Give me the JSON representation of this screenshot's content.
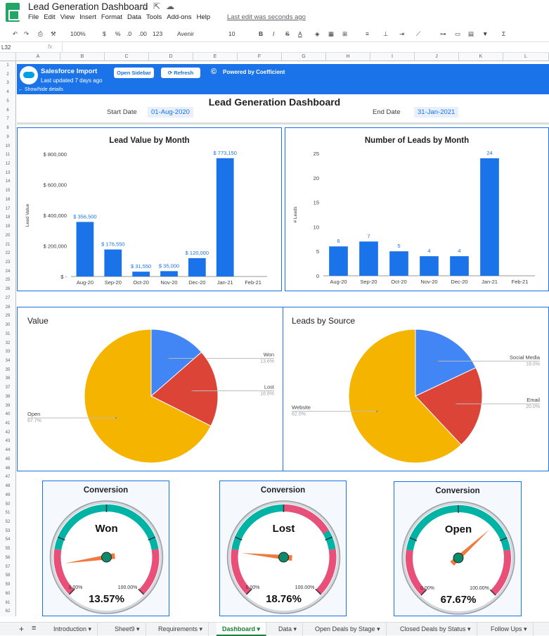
{
  "doc": {
    "title": "Lead Generation Dashboard",
    "menus": [
      "File",
      "Edit",
      "View",
      "Insert",
      "Format",
      "Data",
      "Tools",
      "Add-ons",
      "Help"
    ],
    "last_edit": "Last edit was seconds ago"
  },
  "toolbar": {
    "zoom": "100%",
    "currency": "$",
    "percent": "%",
    "dec_less": ".0",
    "dec_more": ".00",
    "format_more": "123",
    "font": "Avenir",
    "font_size": "10",
    "bold": "B",
    "italic": "I",
    "strike": "S",
    "text_color": "A",
    "sum": "Σ"
  },
  "formula_bar": {
    "cell_ref": "L32",
    "fx": "fx"
  },
  "columns": [
    "A",
    "B",
    "C",
    "D",
    "E",
    "F",
    "G",
    "H",
    "I",
    "J",
    "K",
    "L"
  ],
  "rows": [
    "1",
    "2",
    "3",
    "4",
    "5",
    "6",
    "7",
    "8",
    "9",
    "10",
    "11",
    "12",
    "13",
    "14",
    "15",
    "16",
    "17",
    "18",
    "19",
    "20",
    "21",
    "22",
    "23",
    "24",
    "25",
    "26",
    "27",
    "28",
    "29",
    "30",
    "31",
    "32",
    "33",
    "34",
    "35",
    "36",
    "37",
    "38",
    "39",
    "40",
    "41",
    "42",
    "43",
    "44",
    "45",
    "46",
    "47",
    "48",
    "49",
    "50",
    "51",
    "52",
    "53",
    "54",
    "55",
    "56",
    "57",
    "58",
    "59",
    "60",
    "61",
    "62"
  ],
  "banner": {
    "title": "Salesforce Import",
    "updated": "Last updated 7 days ago",
    "open_sidebar": "Open Sidebar",
    "refresh": "Refresh",
    "powered": "Powered by Coefficient",
    "show_hide": "← Show/hide details"
  },
  "dashboard": {
    "title": "Lead Generation Dashboard",
    "start_label": "Start Date",
    "start_value": "01-Aug-2020",
    "end_label": "End Date",
    "end_value": "31-Jan-2021"
  },
  "chart_data": [
    {
      "type": "bar",
      "title": "Lead Value by Month",
      "ylabel": "Lead Value",
      "categories": [
        "Aug-20",
        "Sep-20",
        "Oct-20",
        "Nov-20",
        "Dec-20",
        "Jan-21",
        "Feb-21"
      ],
      "values": [
        356500,
        176550,
        31550,
        35000,
        120000,
        773150,
        null
      ],
      "labels": [
        "$ 356,500",
        "$ 176,550",
        "$ 31,550",
        "$ 35,000",
        "$ 120,000",
        "$ 773,150",
        ""
      ],
      "yticks": [
        "$ -",
        "$ 200,000",
        "$ 400,000",
        "$ 600,000",
        "$ 800,000"
      ],
      "ylim": [
        0,
        800000
      ],
      "color": "#1a73e8"
    },
    {
      "type": "bar",
      "title": "Number of Leads by Month",
      "ylabel": "# Leads",
      "categories": [
        "Aug-20",
        "Sep-20",
        "Oct-20",
        "Nov-20",
        "Dec-20",
        "Jan-21",
        "Feb-21"
      ],
      "values": [
        6,
        7,
        5,
        4,
        4,
        24,
        null
      ],
      "labels": [
        "6",
        "7",
        "5",
        "4",
        "4",
        "24",
        ""
      ],
      "yticks": [
        "0",
        "5",
        "10",
        "15",
        "20",
        "25"
      ],
      "ylim": [
        0,
        25
      ],
      "color": "#1a73e8"
    },
    {
      "type": "pie",
      "title": "Value",
      "slices": [
        {
          "name": "Won",
          "value": 13.6,
          "label": "13.6%",
          "color": "#4285f4"
        },
        {
          "name": "Lost",
          "value": 18.8,
          "label": "18.8%",
          "color": "#db4437"
        },
        {
          "name": "Open",
          "value": 67.7,
          "label": "67.7%",
          "color": "#f4b400"
        }
      ]
    },
    {
      "type": "pie",
      "title": "Leads by Source",
      "slices": [
        {
          "name": "Social Media",
          "value": 18.0,
          "label": "18.0%",
          "color": "#4285f4"
        },
        {
          "name": "Email",
          "value": 20.0,
          "label": "20.0%",
          "color": "#db4437"
        },
        {
          "name": "Website",
          "value": 62.0,
          "label": "62.0%",
          "color": "#f4b400"
        }
      ]
    }
  ],
  "gauges": [
    {
      "title": "Conversion",
      "label": "Won",
      "value": 13.57,
      "display": "13.57%",
      "min_label": "0.00%",
      "max_label": "100.00%",
      "highlight": "#00b3a4"
    },
    {
      "title": "Conversion",
      "label": "Lost",
      "value": 18.76,
      "display": "18.76%",
      "min_label": "0.00%",
      "max_label": "100.00%",
      "highlight": "#e8507a"
    },
    {
      "title": "Conversion",
      "label": "Open",
      "value": 67.67,
      "display": "67.67%",
      "min_label": "0.00%",
      "max_label": "100.00%",
      "highlight": "#00b3a4"
    }
  ],
  "tabs": [
    {
      "label": "Introduction",
      "active": false
    },
    {
      "label": "Sheet9",
      "active": false
    },
    {
      "label": "Requirements",
      "active": false
    },
    {
      "label": "Dashboard",
      "active": true
    },
    {
      "label": "Data",
      "active": false
    },
    {
      "label": "Open Deals by Stage",
      "active": false
    },
    {
      "label": "Closed Deals by Status",
      "active": false
    },
    {
      "label": "Follow Ups",
      "active": false
    }
  ]
}
